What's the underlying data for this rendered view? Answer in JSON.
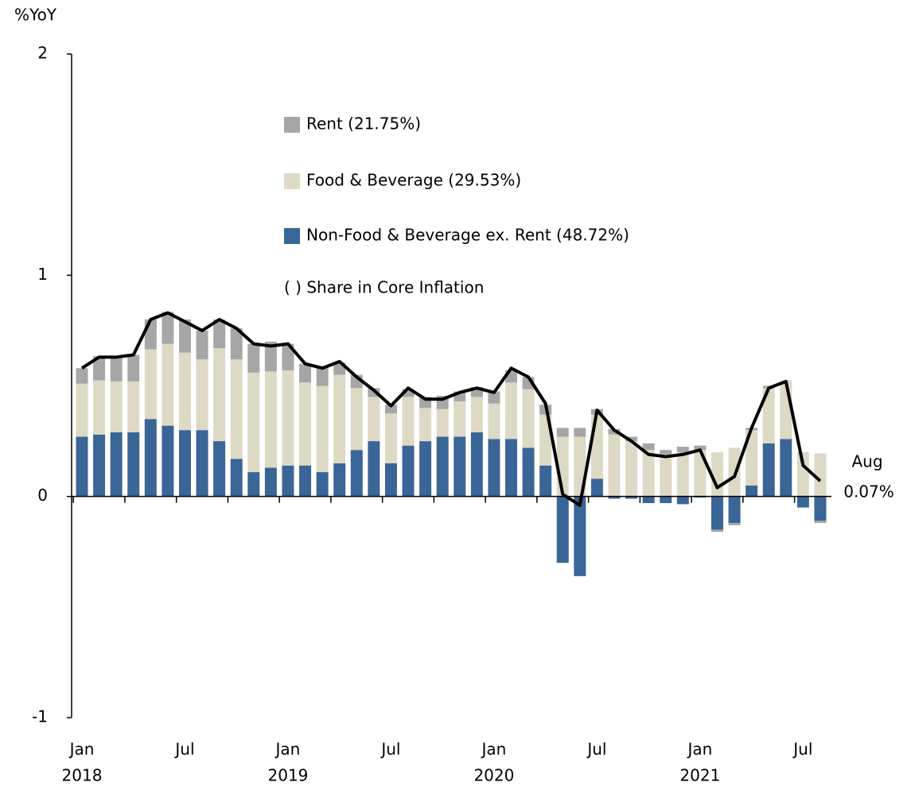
{
  "chart_data": {
    "type": "stacked-bar-line",
    "y_label": "%YoY",
    "categories": [
      "Jan",
      null,
      null,
      null,
      null,
      null,
      "Jul",
      null,
      null,
      null,
      null,
      null,
      "Jan",
      null,
      null,
      null,
      null,
      null,
      "Jul",
      null,
      null,
      null,
      null,
      null,
      "Jan",
      null,
      null,
      null,
      null,
      null,
      "Jul",
      null,
      null,
      null,
      null,
      null,
      "Jan",
      null,
      null,
      null,
      null,
      null,
      "Jul",
      null
    ],
    "years": [
      "2018",
      null,
      null,
      null,
      null,
      null,
      null,
      null,
      null,
      null,
      null,
      null,
      "2019",
      null,
      null,
      null,
      null,
      null,
      null,
      null,
      null,
      null,
      null,
      null,
      "2020",
      null,
      null,
      null,
      null,
      null,
      null,
      null,
      null,
      null,
      null,
      null,
      "2021",
      null,
      null,
      null,
      null,
      null,
      null,
      null
    ],
    "series": [
      {
        "name": "Non-Food & Beverage ex. Rent (48.72%)",
        "color": "#3a6597",
        "values": [
          0.27,
          0.28,
          0.29,
          0.29,
          0.35,
          0.32,
          0.3,
          0.3,
          0.25,
          0.17,
          0.11,
          0.13,
          0.14,
          0.14,
          0.11,
          0.15,
          0.21,
          0.25,
          0.15,
          0.23,
          0.25,
          0.27,
          0.27,
          0.29,
          0.26,
          0.26,
          0.22,
          0.14,
          -0.3,
          -0.36,
          0.08,
          -0.01,
          -0.01,
          -0.03,
          -0.03,
          -0.035,
          -0.005,
          -0.15,
          -0.12,
          0.05,
          0.24,
          0.26,
          -0.05,
          -0.11
        ]
      },
      {
        "name": "Food & Beverage (29.53%)",
        "color": "#ddd9c4",
        "values": [
          0.24,
          0.245,
          0.23,
          0.23,
          0.315,
          0.37,
          0.35,
          0.32,
          0.42,
          0.45,
          0.45,
          0.435,
          0.43,
          0.375,
          0.39,
          0.4,
          0.28,
          0.2,
          0.225,
          0.22,
          0.15,
          0.125,
          0.16,
          0.16,
          0.16,
          0.255,
          0.265,
          0.23,
          0.27,
          0.27,
          0.29,
          0.28,
          0.25,
          0.21,
          0.19,
          0.2,
          0.21,
          0.2,
          0.22,
          0.25,
          0.25,
          0.265,
          0.2,
          0.195
        ]
      },
      {
        "name": "Rent (21.75%)",
        "color": "#a6a6a6",
        "values": [
          0.07,
          0.11,
          0.11,
          0.12,
          0.135,
          0.145,
          0.15,
          0.13,
          0.13,
          0.14,
          0.13,
          0.135,
          0.12,
          0.085,
          0.09,
          0.055,
          0.06,
          0.04,
          0.04,
          0.035,
          0.05,
          0.06,
          0.045,
          0.045,
          0.055,
          0.055,
          0.055,
          0.045,
          0.04,
          0.04,
          0.025,
          0.025,
          0.02,
          0.03,
          0.02,
          0.025,
          0.02,
          -0.01,
          -0.01,
          0.01,
          0.01,
          0.0,
          0.0,
          -0.01
        ]
      }
    ],
    "line": {
      "color": "#000000",
      "values": [
        0.58,
        0.63,
        0.63,
        0.64,
        0.8,
        0.83,
        0.79,
        0.75,
        0.8,
        0.76,
        0.69,
        0.68,
        0.69,
        0.6,
        0.58,
        0.61,
        0.54,
        0.48,
        0.41,
        0.49,
        0.44,
        0.44,
        0.47,
        0.49,
        0.47,
        0.58,
        0.54,
        0.42,
        0.01,
        -0.04,
        0.39,
        0.3,
        0.25,
        0.19,
        0.18,
        0.19,
        0.21,
        0.04,
        0.09,
        0.31,
        0.49,
        0.52,
        0.14,
        0.07
      ]
    },
    "note": "( ) Share in Core Inflation",
    "annotation": {
      "month": "Aug",
      "value": "0.07%"
    },
    "ylim": [
      -1,
      2
    ],
    "yticks": [
      -1,
      0,
      1,
      2
    ]
  }
}
